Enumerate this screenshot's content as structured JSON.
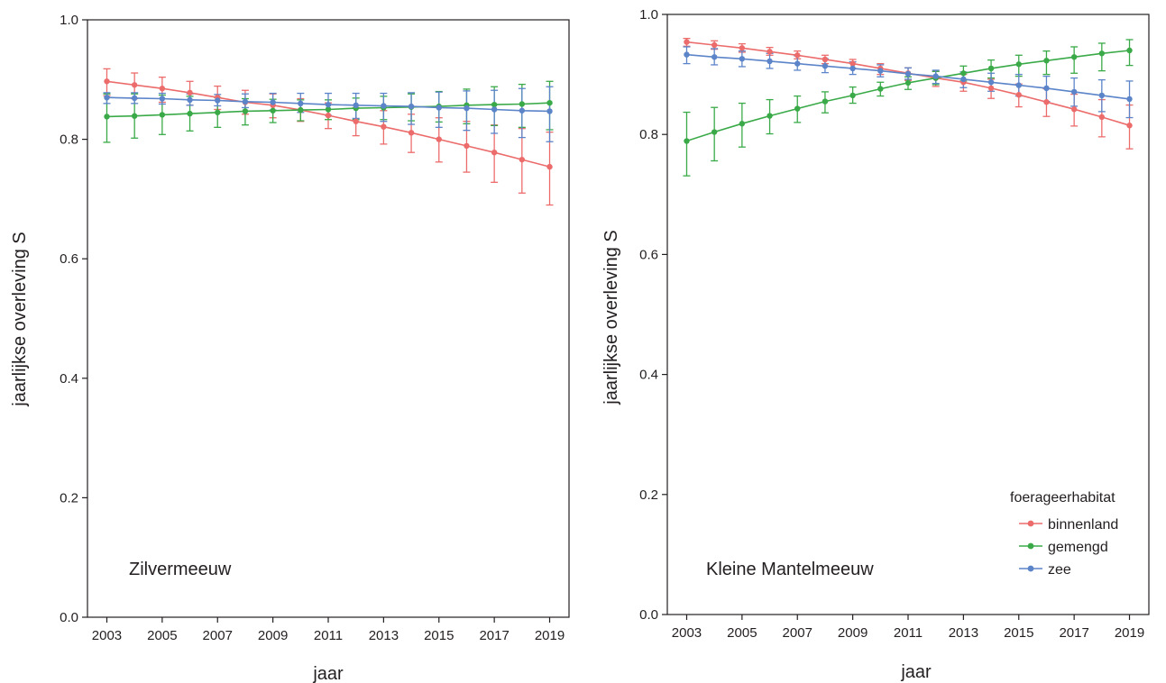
{
  "chart_data": [
    {
      "type": "line",
      "panel_label": "Zilvermeeuw",
      "xlabel": "jaar",
      "ylabel": "jaarlijkse overleving S",
      "xlim": [
        2002.3,
        2019.7
      ],
      "ylim": [
        0.0,
        1.0
      ],
      "x_ticks": [
        2003,
        2005,
        2007,
        2009,
        2011,
        2013,
        2015,
        2017,
        2019
      ],
      "y_ticks": [
        0.0,
        0.2,
        0.4,
        0.6,
        0.8,
        1.0
      ],
      "y_tick_labels": [
        "0.0",
        "0.2",
        "0.4",
        "0.6",
        "0.8",
        "1.0"
      ],
      "grid": false,
      "x": [
        2003,
        2004,
        2005,
        2006,
        2007,
        2008,
        2009,
        2010,
        2011,
        2012,
        2013,
        2014,
        2015,
        2016,
        2017,
        2018,
        2019
      ],
      "series": [
        {
          "name": "binnenland",
          "color": "#ec6c6c",
          "values": [
            0.897,
            0.891,
            0.885,
            0.878,
            0.87,
            0.862,
            0.857,
            0.849,
            0.84,
            0.83,
            0.821,
            0.811,
            0.8,
            0.789,
            0.778,
            0.766,
            0.754
          ],
          "lower": [
            0.873,
            0.868,
            0.862,
            0.857,
            0.85,
            0.842,
            0.836,
            0.83,
            0.818,
            0.806,
            0.792,
            0.778,
            0.762,
            0.745,
            0.728,
            0.71,
            0.69
          ],
          "upper": [
            0.918,
            0.911,
            0.904,
            0.897,
            0.889,
            0.882,
            0.876,
            0.868,
            0.861,
            0.853,
            0.848,
            0.842,
            0.836,
            0.83,
            0.824,
            0.818,
            0.812
          ]
        },
        {
          "name": "gemengd",
          "color": "#3aaa48",
          "values": [
            0.838,
            0.839,
            0.841,
            0.843,
            0.845,
            0.847,
            0.848,
            0.849,
            0.85,
            0.852,
            0.853,
            0.854,
            0.855,
            0.857,
            0.858,
            0.859,
            0.861
          ],
          "lower": [
            0.795,
            0.802,
            0.808,
            0.814,
            0.82,
            0.824,
            0.828,
            0.831,
            0.833,
            0.833,
            0.833,
            0.831,
            0.829,
            0.826,
            0.823,
            0.82,
            0.816
          ],
          "upper": [
            0.876,
            0.876,
            0.874,
            0.872,
            0.87,
            0.868,
            0.867,
            0.866,
            0.866,
            0.869,
            0.872,
            0.876,
            0.88,
            0.884,
            0.888,
            0.892,
            0.897
          ]
        },
        {
          "name": "zee",
          "color": "#5b84c9",
          "values": [
            0.87,
            0.869,
            0.868,
            0.866,
            0.865,
            0.863,
            0.862,
            0.86,
            0.858,
            0.857,
            0.856,
            0.855,
            0.853,
            0.852,
            0.85,
            0.848,
            0.847
          ],
          "lower": [
            0.86,
            0.86,
            0.859,
            0.857,
            0.856,
            0.853,
            0.849,
            0.845,
            0.84,
            0.835,
            0.83,
            0.825,
            0.82,
            0.815,
            0.81,
            0.803,
            0.796
          ],
          "upper": [
            0.878,
            0.878,
            0.877,
            0.876,
            0.875,
            0.876,
            0.877,
            0.877,
            0.877,
            0.877,
            0.877,
            0.878,
            0.879,
            0.881,
            0.882,
            0.885,
            0.888
          ]
        }
      ]
    },
    {
      "type": "line",
      "panel_label": "Kleine Mantelmeeuw",
      "xlabel": "jaar",
      "ylabel": "jaarlijkse overleving S",
      "xlim": [
        2002.3,
        2019.7
      ],
      "ylim": [
        0.0,
        1.0
      ],
      "x_ticks": [
        2003,
        2005,
        2007,
        2009,
        2011,
        2013,
        2015,
        2017,
        2019
      ],
      "y_ticks": [
        0.0,
        0.2,
        0.4,
        0.6,
        0.8,
        1.0
      ],
      "y_tick_labels": [
        "0.0",
        "0.2",
        "0.4",
        "0.6",
        "0.8",
        "1.0"
      ],
      "grid": false,
      "legend": {
        "title": "foerageerhabitat",
        "position": "bottom-right",
        "entries": [
          "binnenland",
          "gemengd",
          "zee"
        ]
      },
      "x": [
        2003,
        2004,
        2005,
        2006,
        2007,
        2008,
        2009,
        2010,
        2011,
        2012,
        2013,
        2014,
        2015,
        2016,
        2017,
        2018,
        2019
      ],
      "series": [
        {
          "name": "binnenland",
          "color": "#ec6c6c",
          "values": [
            0.954,
            0.949,
            0.944,
            0.938,
            0.932,
            0.925,
            0.918,
            0.91,
            0.902,
            0.894,
            0.887,
            0.877,
            0.866,
            0.854,
            0.842,
            0.829,
            0.815
          ],
          "lower": [
            0.947,
            0.942,
            0.937,
            0.932,
            0.926,
            0.918,
            0.91,
            0.9,
            0.89,
            0.88,
            0.872,
            0.86,
            0.846,
            0.83,
            0.814,
            0.796,
            0.776
          ],
          "upper": [
            0.96,
            0.956,
            0.951,
            0.945,
            0.939,
            0.932,
            0.925,
            0.918,
            0.911,
            0.905,
            0.9,
            0.892,
            0.884,
            0.876,
            0.867,
            0.858,
            0.849
          ]
        },
        {
          "name": "gemengd",
          "color": "#3aaa48",
          "values": [
            0.789,
            0.804,
            0.818,
            0.831,
            0.843,
            0.855,
            0.865,
            0.876,
            0.886,
            0.894,
            0.902,
            0.91,
            0.917,
            0.923,
            0.929,
            0.935,
            0.94
          ],
          "lower": [
            0.731,
            0.756,
            0.779,
            0.801,
            0.82,
            0.836,
            0.852,
            0.864,
            0.875,
            0.883,
            0.889,
            0.894,
            0.897,
            0.9,
            0.902,
            0.906,
            0.915
          ],
          "upper": [
            0.837,
            0.845,
            0.852,
            0.858,
            0.864,
            0.871,
            0.879,
            0.887,
            0.896,
            0.905,
            0.914,
            0.924,
            0.932,
            0.939,
            0.946,
            0.952,
            0.958
          ]
        },
        {
          "name": "zee",
          "color": "#5b84c9",
          "values": [
            0.933,
            0.929,
            0.926,
            0.922,
            0.918,
            0.914,
            0.91,
            0.906,
            0.901,
            0.897,
            0.892,
            0.887,
            0.882,
            0.877,
            0.871,
            0.865,
            0.859
          ],
          "lower": [
            0.918,
            0.916,
            0.913,
            0.91,
            0.907,
            0.903,
            0.9,
            0.896,
            0.892,
            0.885,
            0.878,
            0.872,
            0.864,
            0.855,
            0.847,
            0.838,
            0.828
          ],
          "upper": [
            0.946,
            0.943,
            0.939,
            0.935,
            0.931,
            0.926,
            0.921,
            0.916,
            0.911,
            0.907,
            0.904,
            0.902,
            0.9,
            0.897,
            0.894,
            0.891,
            0.889
          ]
        }
      ]
    }
  ]
}
